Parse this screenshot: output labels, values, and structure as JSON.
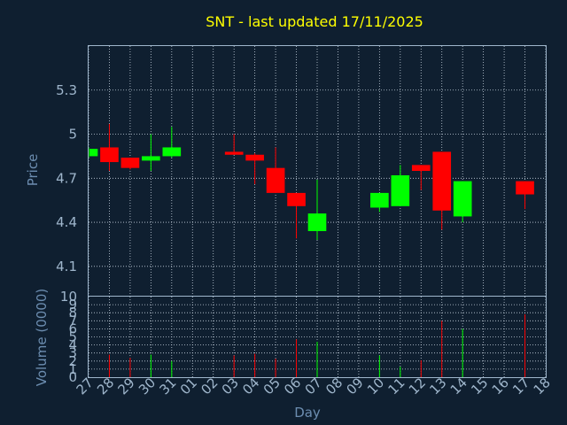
{
  "chart_data": {
    "type": "candlestick",
    "title": "SNT - last updated 17/11/2025",
    "xlabel": "Day",
    "price_panel": {
      "ylabel": "Price",
      "ylim": [
        3.9,
        5.6
      ],
      "yticks": [
        "4.1",
        "4.4",
        "4.7",
        "5",
        "5.3"
      ]
    },
    "volume_panel": {
      "ylabel": "Volume (0000)",
      "ylim": [
        0,
        10
      ],
      "yticks": [
        "0",
        "1",
        "2",
        "3",
        "4",
        "5",
        "6",
        "7",
        "8",
        "9",
        "10"
      ]
    },
    "x_tick_labels": [
      "27",
      "28",
      "29",
      "30",
      "31",
      "01",
      "02",
      "03",
      "04",
      "05",
      "06",
      "07",
      "08",
      "09",
      "10",
      "11",
      "12",
      "13",
      "14",
      "15",
      "16",
      "17",
      "18"
    ],
    "candles": [
      {
        "day": "27",
        "open": 4.85,
        "close": 4.9,
        "high": 4.91,
        "low": 4.84,
        "volume": 0
      },
      {
        "day": "28",
        "open": 4.91,
        "close": 4.81,
        "high": 5.07,
        "low": 4.75,
        "volume": 2.8
      },
      {
        "day": "29",
        "open": 4.84,
        "close": 4.77,
        "high": 4.84,
        "low": 4.76,
        "volume": 2.4
      },
      {
        "day": "30",
        "open": 4.82,
        "close": 4.85,
        "high": 5.0,
        "low": 4.75,
        "volume": 2.8
      },
      {
        "day": "31",
        "open": 4.85,
        "close": 4.91,
        "high": 5.05,
        "low": 4.84,
        "volume": 2.0
      },
      {
        "day": "03",
        "open": 4.88,
        "close": 4.86,
        "high": 5.0,
        "low": 4.86,
        "volume": 2.7
      },
      {
        "day": "04",
        "open": 4.86,
        "close": 4.82,
        "high": 4.87,
        "low": 4.66,
        "volume": 2.9
      },
      {
        "day": "05",
        "open": 4.77,
        "close": 4.6,
        "high": 4.91,
        "low": 4.6,
        "volume": 2.3
      },
      {
        "day": "06",
        "open": 4.6,
        "close": 4.51,
        "high": 4.6,
        "low": 4.29,
        "volume": 4.7
      },
      {
        "day": "07",
        "open": 4.34,
        "close": 4.46,
        "high": 4.69,
        "low": 4.28,
        "volume": 4.4
      },
      {
        "day": "10",
        "open": 4.5,
        "close": 4.6,
        "high": 4.6,
        "low": 4.47,
        "volume": 2.7
      },
      {
        "day": "11",
        "open": 4.51,
        "close": 4.72,
        "high": 4.79,
        "low": 4.51,
        "volume": 1.3
      },
      {
        "day": "12",
        "open": 4.79,
        "close": 4.75,
        "high": 4.79,
        "low": 4.62,
        "volume": 2.1
      },
      {
        "day": "13",
        "open": 4.88,
        "close": 4.48,
        "high": 4.88,
        "low": 4.35,
        "volume": 7.0
      },
      {
        "day": "14",
        "open": 4.44,
        "close": 4.68,
        "high": 4.68,
        "low": 4.4,
        "volume": 6.0
      },
      {
        "day": "17",
        "open": 4.68,
        "close": 4.59,
        "high": 4.68,
        "low": 4.49,
        "volume": 7.8
      }
    ],
    "up_color": "#00ff00",
    "down_color": "#ff0000",
    "grid": true,
    "background": "#0f1f30"
  }
}
